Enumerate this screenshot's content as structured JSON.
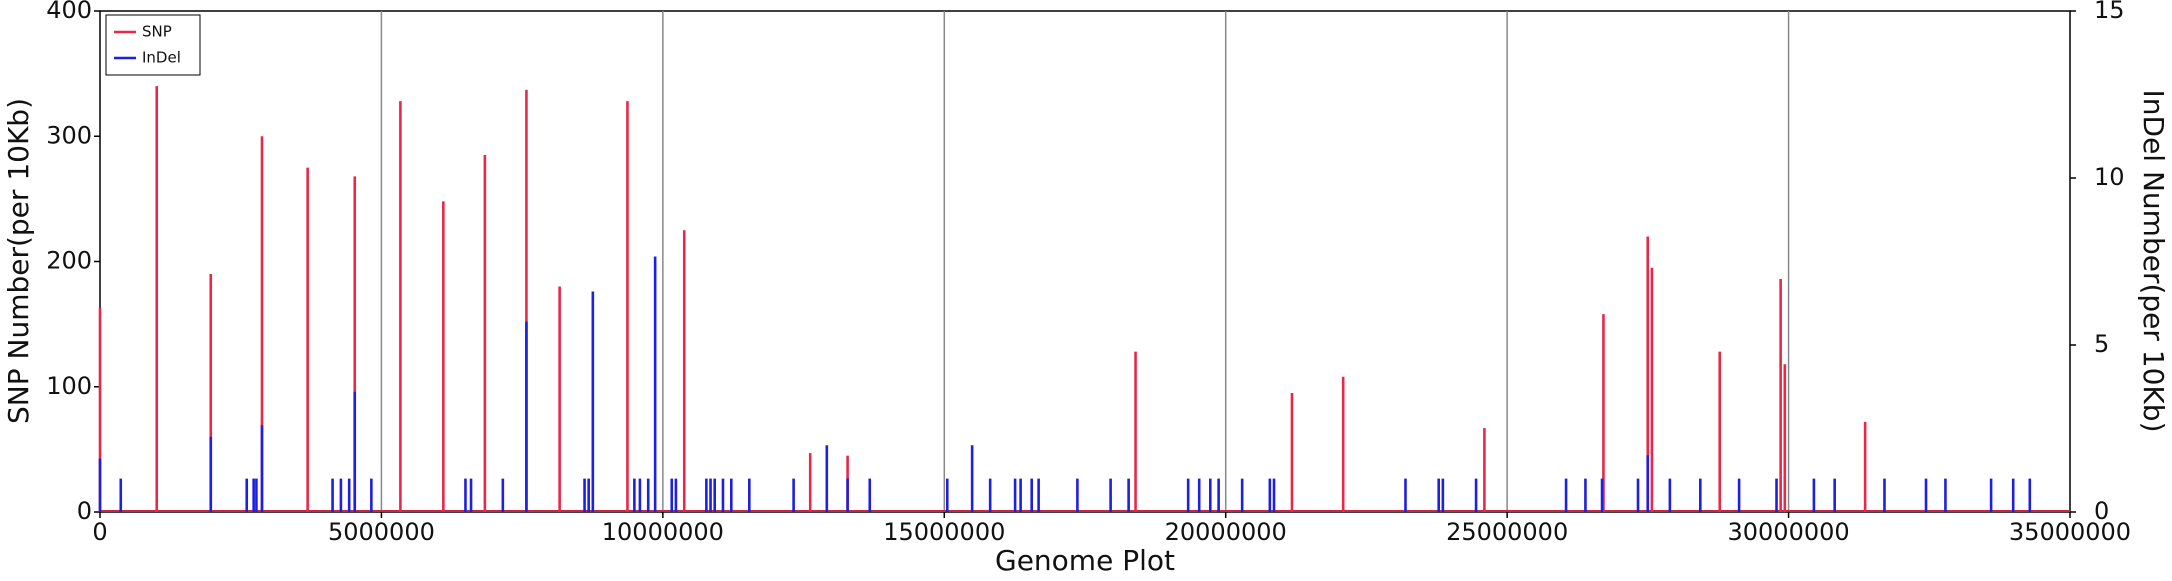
{
  "chart_data": {
    "type": "spike",
    "x_label": "Genome Plot",
    "y_label": "SNP Number(per 10Kb)",
    "y2_label": "InDel Number(per 10Kb)",
    "xlim": [
      0,
      35000000
    ],
    "xticks": [
      0,
      5000000,
      10000000,
      15000000,
      20000000,
      25000000,
      30000000,
      35000000
    ],
    "ylim": [
      0,
      400
    ],
    "yticks": [
      0,
      100,
      200,
      300,
      400
    ],
    "y2lim": [
      0,
      15
    ],
    "y2ticks": [
      0,
      5,
      10,
      15
    ],
    "grid": true,
    "legend": "upper-left",
    "series": [
      {
        "name": "SNP",
        "color": "#e8284a",
        "x": [
          0,
          1008000,
          1968000,
          2878000,
          3689000,
          4526000,
          5337000,
          6100000,
          6838000,
          7576000,
          8166000,
          9371000,
          10380000,
          12618000,
          13282000,
          18398000,
          21177000,
          22087000,
          24596000,
          26711000,
          27498000,
          27572000,
          28777000,
          29859000,
          29933000,
          31360000
        ],
        "values": [
          163,
          340,
          190,
          300,
          275,
          268,
          328,
          248,
          285,
          337,
          180,
          328,
          225,
          47,
          45,
          128,
          95,
          108,
          67,
          158,
          220,
          195,
          128,
          186,
          118,
          72
        ]
      },
      {
        "name": "InDel",
        "color": "#1f1fe0",
        "axis": "y2",
        "x": [
          0,
          369000,
          1968000,
          2607000,
          2730000,
          2779000,
          2878000,
          4132000,
          4280000,
          4427000,
          4526000,
          4821000,
          6493000,
          6592000,
          7157000,
          7576000,
          8609000,
          8682000,
          8756000,
          9494000,
          9592000,
          9740000,
          9863000,
          10158000,
          10232000,
          10773000,
          10847000,
          10921000,
          11068000,
          11216000,
          11536000,
          12323000,
          12913000,
          13282000,
          13676000,
          15053000,
          15495000,
          15815000,
          16258000,
          16356000,
          16553000,
          16676000,
          17365000,
          17955000,
          18275000,
          19333000,
          19529000,
          19726000,
          19874000,
          20292000,
          20784000,
          20858000,
          23194000,
          23784000,
          23858000,
          24448000,
          26047000,
          26391000,
          26686000,
          27325000,
          27498000,
          27891000,
          28432000,
          29121000,
          29786000,
          30450000,
          30819000,
          31704000,
          32442000,
          32787000,
          33598000,
          33991000,
          34286000
        ],
        "values": [
          1.6,
          1,
          2.25,
          1,
          1,
          1,
          2.6,
          1,
          1,
          1,
          3.6,
          1,
          1,
          1,
          1,
          5.7,
          1,
          1,
          6.6,
          1,
          1,
          1,
          7.65,
          1,
          1,
          1,
          1,
          1,
          1,
          1,
          1,
          1,
          2,
          1,
          1,
          1,
          2,
          1,
          1,
          1,
          1,
          1,
          1,
          1,
          1,
          1,
          1,
          1,
          1,
          1,
          1,
          1,
          1,
          1,
          1,
          1,
          1,
          1,
          1,
          1,
          1.7,
          1,
          1,
          1,
          1,
          1,
          1,
          1,
          1,
          1,
          1,
          1,
          1
        ]
      }
    ]
  }
}
